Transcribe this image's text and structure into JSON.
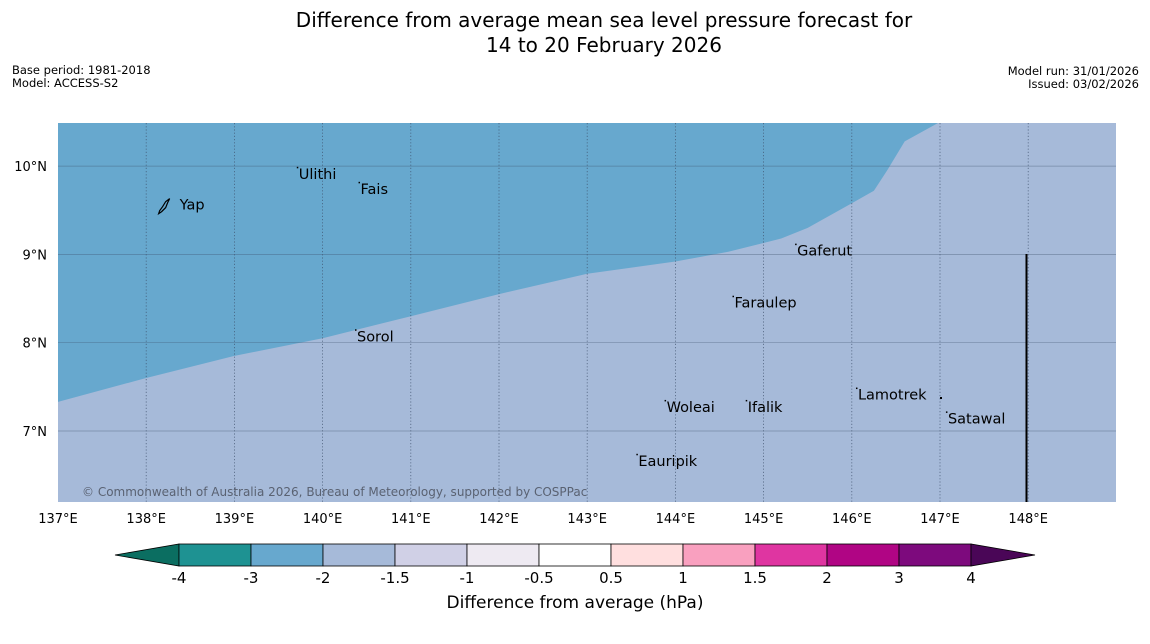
{
  "header": {
    "title_line1": "Difference from average mean sea level pressure forecast for",
    "title_line2": "14 to 20 February 2026",
    "base_period": "Base period: 1981-2018",
    "model": "Model: ACCESS-S2",
    "model_run": "Model run: 31/01/2026",
    "issued": "Issued: 03/02/2026"
  },
  "map": {
    "lon_range": [
      137,
      149
    ],
    "lat_range": [
      6.2,
      10.5
    ],
    "lon_ticks": [
      137,
      138,
      139,
      140,
      141,
      142,
      143,
      144,
      145,
      146,
      147,
      148
    ],
    "lon_labels": [
      "137°E",
      "138°E",
      "139°E",
      "140°E",
      "141°E",
      "142°E",
      "143°E",
      "144°E",
      "145°E",
      "146°E",
      "147°E",
      "148°E"
    ],
    "lat_ticks": [
      7,
      8,
      9,
      10
    ],
    "lat_labels": [
      "7°N",
      "8°N",
      "9°N",
      "10°N"
    ],
    "regions": [
      {
        "category": "-3 to -2 hPa",
        "color": "#67a8ce",
        "boundary_lonlat": [
          [
            137.0,
            7.33
          ],
          [
            138.0,
            7.6
          ],
          [
            139.0,
            7.85
          ],
          [
            140.0,
            8.05
          ],
          [
            141.0,
            8.3
          ],
          [
            142.0,
            8.55
          ],
          [
            143.0,
            8.78
          ],
          [
            144.0,
            8.92
          ],
          [
            144.6,
            9.03
          ],
          [
            145.2,
            9.18
          ],
          [
            145.5,
            9.3
          ],
          [
            146.0,
            9.58
          ],
          [
            146.25,
            9.72
          ],
          [
            146.4,
            9.95
          ],
          [
            146.6,
            10.28
          ],
          [
            147.0,
            10.5
          ]
        ]
      },
      {
        "category": "-2 to -1.5 hPa",
        "color": "#a6bad9"
      }
    ],
    "places": [
      {
        "name": "Yap",
        "lon": 138.13,
        "lat": 9.53
      },
      {
        "name": "Ulithi",
        "lon": 139.73,
        "lat": 9.89
      },
      {
        "name": "Fais",
        "lon": 140.43,
        "lat": 9.72
      },
      {
        "name": "Gaferut",
        "lon": 145.38,
        "lat": 9.02
      },
      {
        "name": "Faraulep",
        "lon": 144.67,
        "lat": 8.43
      },
      {
        "name": "Sorol",
        "lon": 140.39,
        "lat": 8.05
      },
      {
        "name": "Lamotrek",
        "lon": 146.07,
        "lat": 7.39
      },
      {
        "name": "Woleai",
        "lon": 143.9,
        "lat": 7.25
      },
      {
        "name": "Ifalik",
        "lon": 144.82,
        "lat": 7.25
      },
      {
        "name": "Satawal",
        "lon": 147.09,
        "lat": 7.12
      },
      {
        "name": "Eauripik",
        "lon": 143.58,
        "lat": 6.64
      }
    ],
    "copyright": "© Commonwealth of Australia 2026, Bureau of Meteorology, supported by COSPPac"
  },
  "colorbar": {
    "title": "Difference from average (hPa)",
    "boundaries": [
      "-4",
      "-3",
      "-2",
      "-1.5",
      "-1",
      "-0.5",
      "0.5",
      "1",
      "1.5",
      "2",
      "3",
      "4"
    ],
    "under_color": "#0b6e61",
    "over_color": "#4a0657",
    "colors": [
      "#1e9292",
      "#67a8ce",
      "#a6bad9",
      "#d0d0e6",
      "#eeeaf2",
      "#ffffff",
      "#ffdfdf",
      "#f9a0bf",
      "#df35a1",
      "#b00584",
      "#7d0a7d"
    ]
  }
}
